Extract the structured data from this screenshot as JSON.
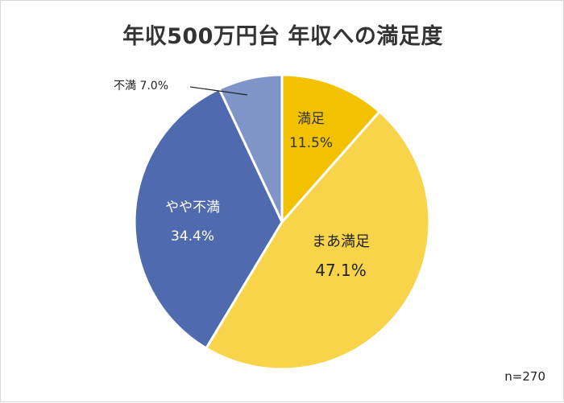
{
  "chart_data": {
    "type": "pie",
    "title": "年収500万円台 年収への満足度",
    "note": "n=270",
    "unit": "%",
    "slices": [
      {
        "label": "満足",
        "value": 11.5,
        "value_text": "11.5%",
        "color": "#F2C200"
      },
      {
        "label": "まあ満足",
        "value": 47.1,
        "value_text": "47.1%",
        "color": "#F7D44A"
      },
      {
        "label": "やや不満",
        "value": 34.4,
        "value_text": "34.4%",
        "color": "#4F6AAE"
      },
      {
        "label": "不満",
        "value": 7.0,
        "value_text": "7.0%",
        "color": "#7F95C7"
      }
    ]
  }
}
